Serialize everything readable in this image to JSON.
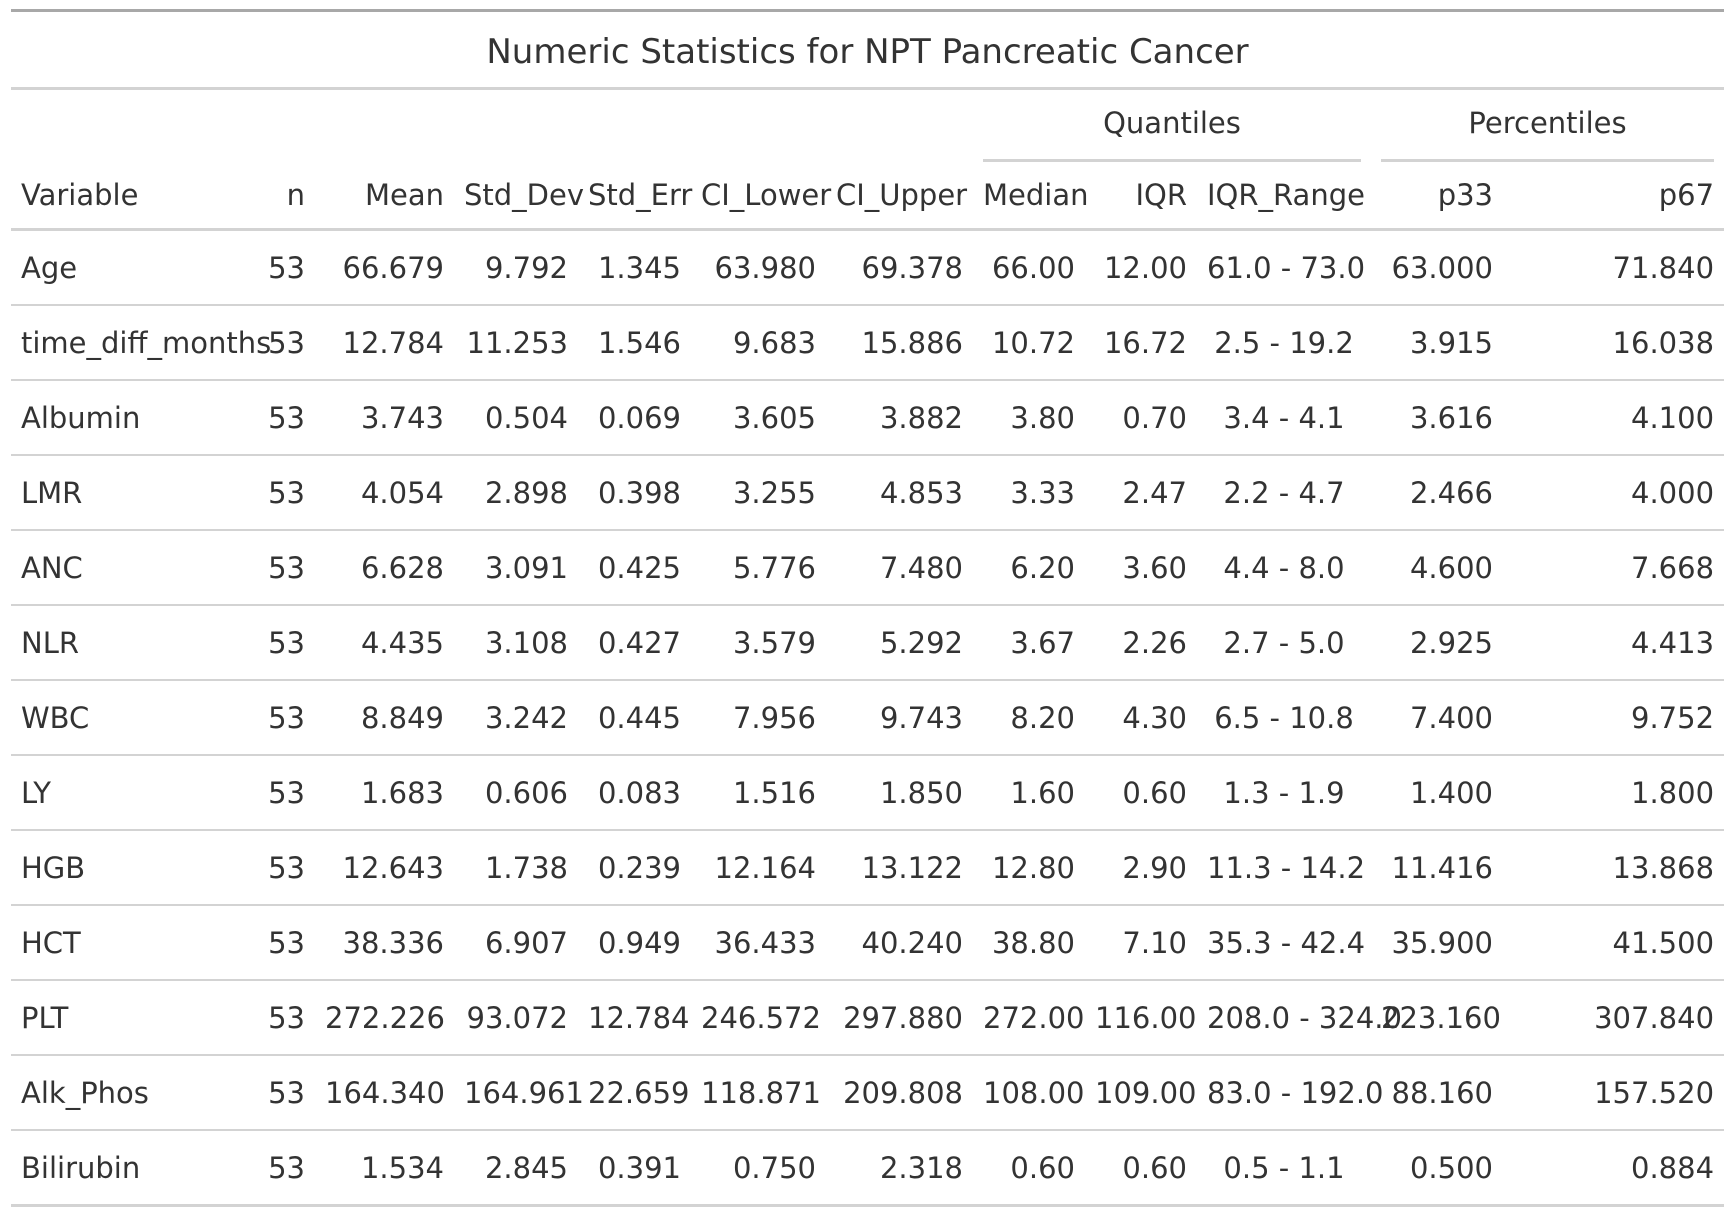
{
  "table": {
    "title": "Numeric Statistics for NPT Pancreatic Cancer",
    "spanners": {
      "quantiles": "Quantiles",
      "percentiles": "Percentiles"
    },
    "columns": [
      "Variable",
      "n",
      "Mean",
      "Std_Dev",
      "Std_Err",
      "CI_Lower",
      "CI_Upper",
      "Median",
      "IQR",
      "IQR_Range",
      "p33",
      "p67"
    ],
    "rows": [
      [
        "Age",
        "53",
        "66.679",
        "9.792",
        "1.345",
        "63.980",
        "69.378",
        "66.00",
        "12.00",
        "61.0 - 73.0",
        "63.000",
        "71.840"
      ],
      [
        "time_diff_months",
        "53",
        "12.784",
        "11.253",
        "1.546",
        "9.683",
        "15.886",
        "10.72",
        "16.72",
        "2.5 - 19.2",
        "3.915",
        "16.038"
      ],
      [
        "Albumin",
        "53",
        "3.743",
        "0.504",
        "0.069",
        "3.605",
        "3.882",
        "3.80",
        "0.70",
        "3.4 - 4.1",
        "3.616",
        "4.100"
      ],
      [
        "LMR",
        "53",
        "4.054",
        "2.898",
        "0.398",
        "3.255",
        "4.853",
        "3.33",
        "2.47",
        "2.2 - 4.7",
        "2.466",
        "4.000"
      ],
      [
        "ANC",
        "53",
        "6.628",
        "3.091",
        "0.425",
        "5.776",
        "7.480",
        "6.20",
        "3.60",
        "4.4 - 8.0",
        "4.600",
        "7.668"
      ],
      [
        "NLR",
        "53",
        "4.435",
        "3.108",
        "0.427",
        "3.579",
        "5.292",
        "3.67",
        "2.26",
        "2.7 - 5.0",
        "2.925",
        "4.413"
      ],
      [
        "WBC",
        "53",
        "8.849",
        "3.242",
        "0.445",
        "7.956",
        "9.743",
        "8.20",
        "4.30",
        "6.5 - 10.8",
        "7.400",
        "9.752"
      ],
      [
        "LY",
        "53",
        "1.683",
        "0.606",
        "0.083",
        "1.516",
        "1.850",
        "1.60",
        "0.60",
        "1.3 - 1.9",
        "1.400",
        "1.800"
      ],
      [
        "HGB",
        "53",
        "12.643",
        "1.738",
        "0.239",
        "12.164",
        "13.122",
        "12.80",
        "2.90",
        "11.3 - 14.2",
        "11.416",
        "13.868"
      ],
      [
        "HCT",
        "53",
        "38.336",
        "6.907",
        "0.949",
        "36.433",
        "40.240",
        "38.80",
        "7.10",
        "35.3 - 42.4",
        "35.900",
        "41.500"
      ],
      [
        "PLT",
        "53",
        "272.226",
        "93.072",
        "12.784",
        "246.572",
        "297.880",
        "272.00",
        "116.00",
        "208.0 - 324.0",
        "223.160",
        "307.840"
      ],
      [
        "Alk_Phos",
        "53",
        "164.340",
        "164.961",
        "22.659",
        "118.871",
        "209.808",
        "108.00",
        "109.00",
        "83.0 - 192.0",
        "88.160",
        "157.520"
      ],
      [
        "Bilirubin",
        "53",
        "1.534",
        "2.845",
        "0.391",
        "0.750",
        "2.318",
        "0.60",
        "0.60",
        "0.5 - 1.1",
        "0.500",
        "0.884"
      ]
    ]
  }
}
